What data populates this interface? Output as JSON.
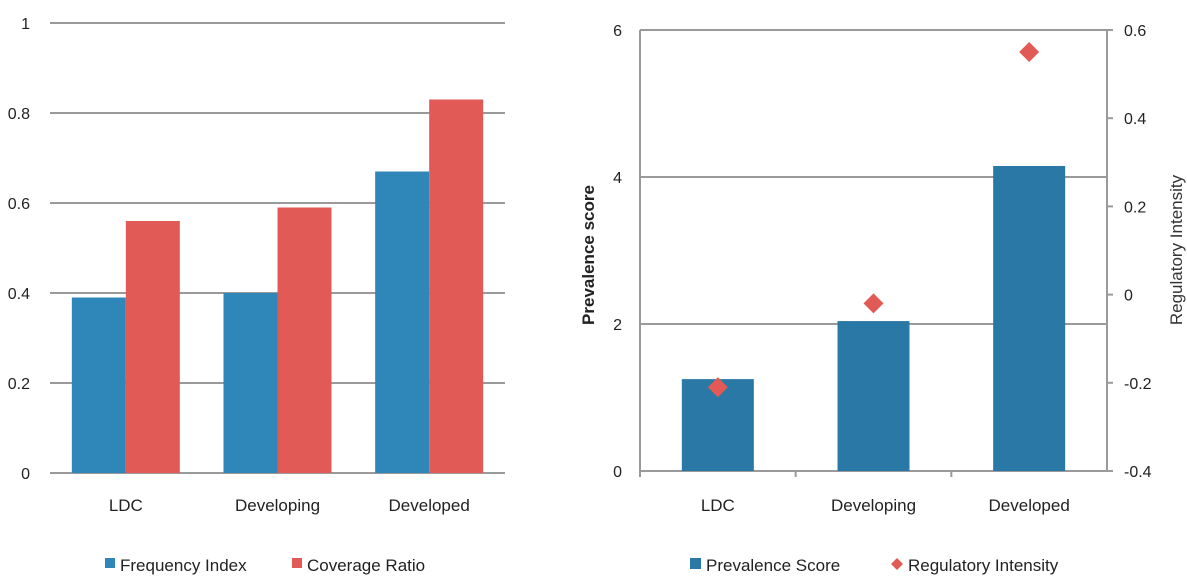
{
  "chart_data": [
    {
      "type": "bar",
      "categories": [
        "LDC",
        "Developing",
        "Developed"
      ],
      "series": [
        {
          "name": "Frequency Index",
          "values": [
            0.39,
            0.4,
            0.67
          ],
          "color": "#2f86b8"
        },
        {
          "name": "Coverage Ratio",
          "values": [
            0.56,
            0.59,
            0.83
          ],
          "color": "#e15a55"
        }
      ],
      "ylim": [
        0,
        1
      ],
      "yticks": [
        "0",
        "0.2",
        "0.4",
        "0.6",
        "0.8",
        "1"
      ],
      "grid": true,
      "legend": "bottom"
    },
    {
      "type": "bar",
      "categories": [
        "LDC",
        "Developing",
        "Developed"
      ],
      "series": [
        {
          "name": "Prevalence Score",
          "values": [
            1.25,
            2.04,
            4.15
          ],
          "color": "#2a78a5",
          "axis": "left"
        },
        {
          "name": "Regulatory Intensity",
          "values": [
            -0.21,
            -0.02,
            0.55
          ],
          "color": "#e15a55",
          "axis": "right",
          "marker": "diamond"
        }
      ],
      "ylabel": "Prevalence score",
      "ylabel_right": "Regulatory Intensity",
      "ylim": [
        0,
        6
      ],
      "ylim_right": [
        -0.4,
        0.6
      ],
      "yticks": [
        "0",
        "2",
        "4",
        "6"
      ],
      "yticks_right": [
        "-0.4",
        "-0.2",
        "0",
        "0.2",
        "0.4",
        "0.6"
      ],
      "grid": true,
      "legend": "bottom"
    }
  ]
}
